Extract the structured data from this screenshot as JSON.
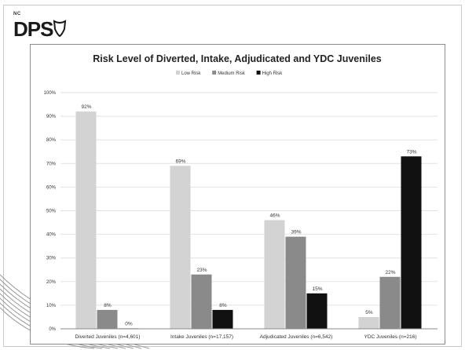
{
  "logo": {
    "small_text": "NC",
    "main_text": "DPS"
  },
  "chart_data": {
    "type": "bar",
    "title": "Risk Level of Diverted, Intake, Adjudicated and YDC Juveniles",
    "xlabel": "",
    "ylabel": "",
    "ylim": [
      0,
      100
    ],
    "y_ticks": [
      "0%",
      "10%",
      "20%",
      "30%",
      "40%",
      "50%",
      "60%",
      "70%",
      "80%",
      "90%",
      "100%"
    ],
    "categories": [
      "Diverted Juveniles (n=4,601)",
      "Intake Juveniles (n=17,157)",
      "Adjudicated Juveniles (n=6,542)",
      "YDC Juveniles (n=216)"
    ],
    "series": [
      {
        "name": "Low Risk",
        "values": [
          92,
          69,
          46,
          5
        ],
        "color": "#d3d3d3"
      },
      {
        "name": "Medium Risk",
        "values": [
          8,
          23,
          39,
          22
        ],
        "color": "#8a8a8a"
      },
      {
        "name": "High Risk",
        "values": [
          0,
          8,
          15,
          73
        ],
        "color": "#111111"
      }
    ],
    "data_label_suffix": "%",
    "legend_position": "top",
    "grid": true
  }
}
